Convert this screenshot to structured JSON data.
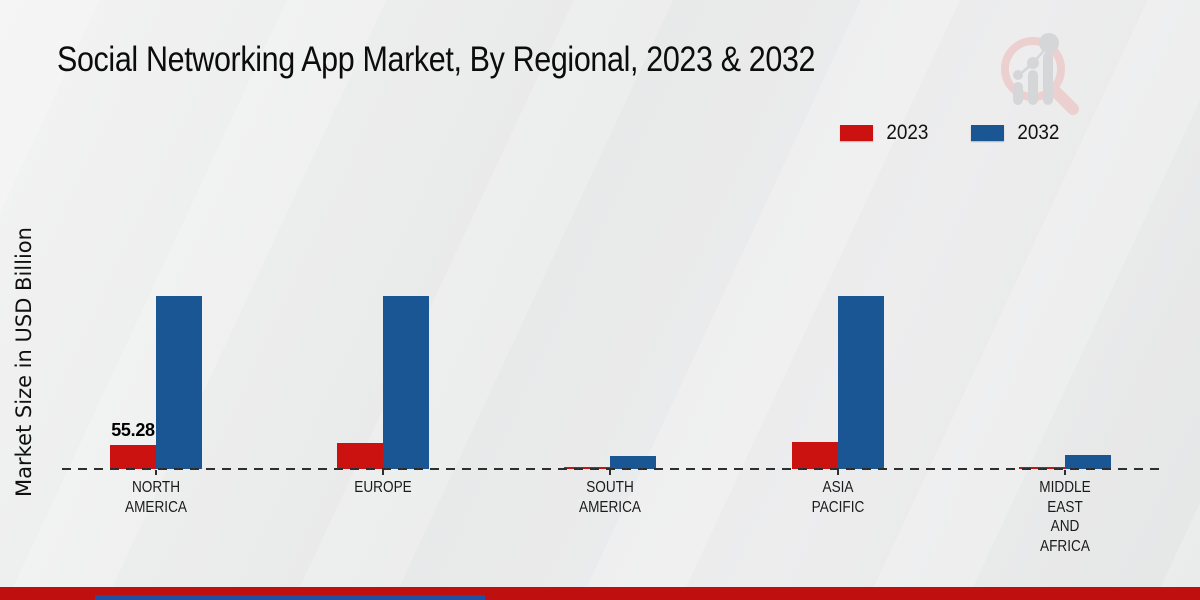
{
  "title": "Social Networking App Market, By Regional, 2023 & 2032",
  "legend": {
    "items": [
      {
        "label": "2023",
        "color": "#cc1111"
      },
      {
        "label": "2032",
        "color": "#1a5694"
      }
    ]
  },
  "chart_data": {
    "type": "bar",
    "title": "Social Networking App Market, By Regional, 2023 & 2032",
    "xlabel": "",
    "ylabel": "Market Size in USD Billion",
    "categories": [
      "NORTH AMERICA",
      "EUROPE",
      "SOUTH AMERICA",
      "ASIA PACIFIC",
      "MIDDLE EAST AND AFRICA"
    ],
    "series": [
      {
        "name": "2023",
        "color": "#cc1111",
        "values": [
          55.28,
          60,
          5,
          62,
          5
        ]
      },
      {
        "name": "2032",
        "color": "#1a5694",
        "values": [
          392,
          392,
          30,
          392,
          32
        ]
      }
    ],
    "value_labels": [
      {
        "series": "2023",
        "category": "NORTH AMERICA",
        "text": "55.28"
      }
    ],
    "ylim": [
      0,
      450
    ],
    "grid": false,
    "baseline_style": "dashed",
    "legend_position": "top-right"
  },
  "watermark_icon": "magnifier-bar-chart-logo",
  "footer": {
    "band_color": "#c00f0f",
    "accent_bar_color": "#1d51a3"
  }
}
